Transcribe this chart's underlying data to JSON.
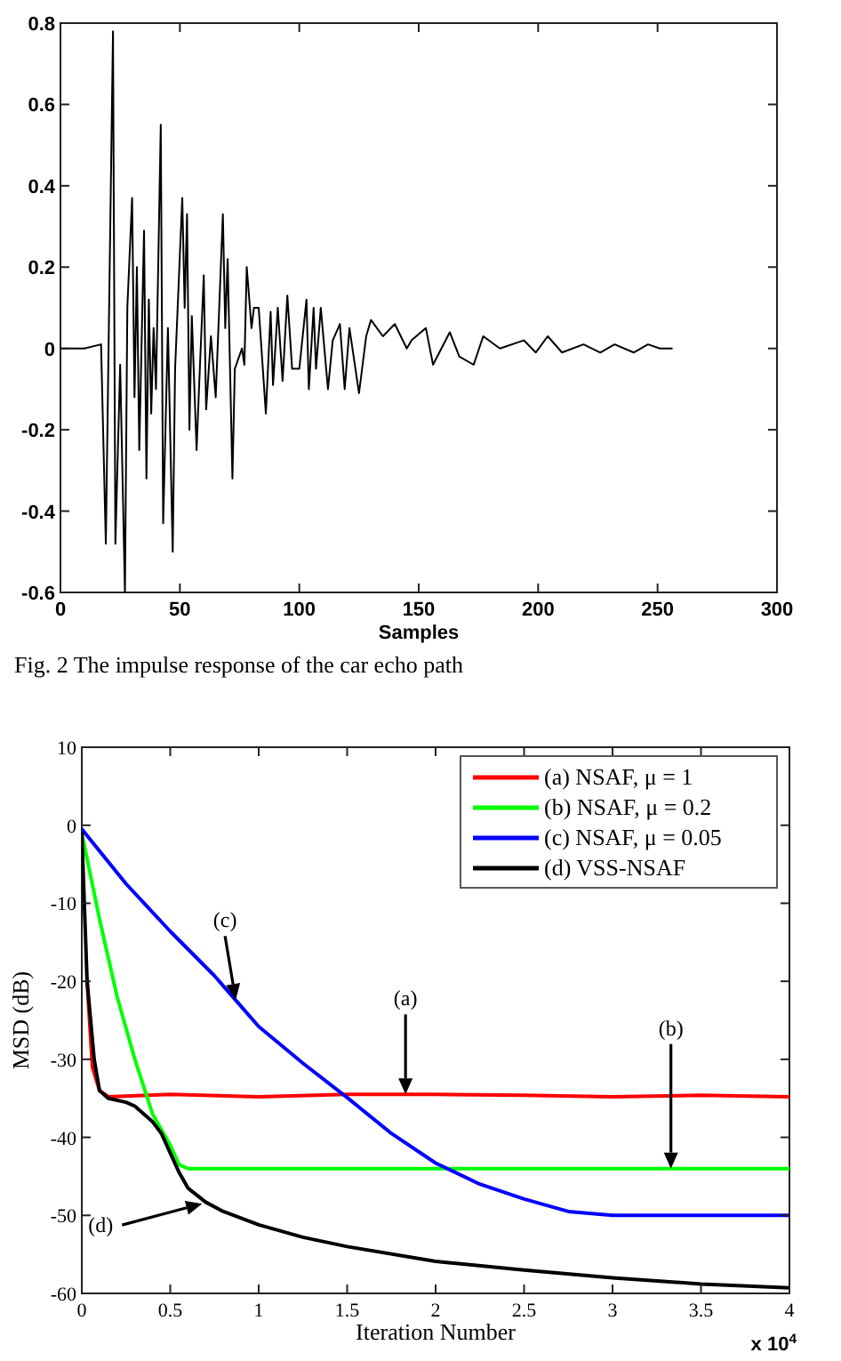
{
  "chart_data": [
    {
      "type": "line",
      "xlabel": "Samples",
      "xlim": [
        0,
        300
      ],
      "xticks": [
        0,
        50,
        100,
        150,
        200,
        250,
        300
      ],
      "ylim": [
        -0.6,
        0.8
      ],
      "yticks": [
        -0.6,
        -0.4,
        -0.2,
        0,
        0.2,
        0.4,
        0.6,
        0.8
      ],
      "grid": false,
      "legend": false,
      "annotations": [
        "Fig. 2 The impulse response of the car echo path"
      ],
      "series": [
        {
          "color": "#000000",
          "x": [
            0,
            10,
            17,
            19,
            22,
            23,
            25,
            27,
            28,
            30,
            31,
            32,
            33,
            35,
            36,
            37,
            38,
            39,
            40,
            42,
            43,
            45,
            47,
            48,
            51,
            52,
            53,
            54,
            55,
            57,
            58,
            60,
            61,
            63,
            65,
            68,
            69,
            70,
            72,
            73,
            76,
            77,
            78,
            80,
            81,
            83,
            86,
            88,
            89,
            91,
            93,
            95,
            97,
            100,
            103,
            104,
            106,
            107,
            109,
            112,
            114,
            117,
            119,
            121,
            125,
            128,
            130,
            135,
            140,
            145,
            147,
            153,
            156,
            163,
            167,
            173,
            177,
            184,
            194,
            199,
            204,
            210,
            219,
            226,
            232,
            240,
            246,
            251,
            256
          ],
          "values": [
            0,
            0,
            0.01,
            -0.48,
            0.78,
            -0.48,
            -0.04,
            -0.6,
            0.1,
            0.37,
            -0.12,
            0.2,
            -0.25,
            0.29,
            -0.32,
            0.12,
            -0.16,
            0.05,
            -0.1,
            0.55,
            -0.43,
            0.05,
            -0.5,
            -0.05,
            0.37,
            0.1,
            0.33,
            -0.2,
            0.08,
            -0.25,
            -0.1,
            0.18,
            -0.15,
            0.03,
            -0.12,
            0.33,
            0.05,
            0.22,
            -0.32,
            -0.05,
            0,
            -0.04,
            0.2,
            0.05,
            0.1,
            0.1,
            -0.16,
            0.09,
            -0.09,
            0.1,
            -0.08,
            0.13,
            -0.05,
            -0.05,
            0.12,
            -0.1,
            0.1,
            -0.05,
            0.1,
            -0.1,
            0.02,
            0.06,
            -0.1,
            0.05,
            -0.11,
            0.03,
            0.07,
            0.03,
            0.06,
            0,
            0.02,
            0.05,
            -0.04,
            0.04,
            -0.02,
            -0.04,
            0.03,
            0,
            0.02,
            -0.01,
            0.03,
            -0.01,
            0.01,
            -0.01,
            0.01,
            -0.01,
            0.01,
            0,
            0
          ]
        }
      ]
    },
    {
      "type": "line",
      "xlabel": "Iteration Number",
      "ylabel": "MSD (dB)",
      "xlim": [
        0,
        4
      ],
      "xticks": [
        0,
        0.5,
        1,
        1.5,
        2,
        2.5,
        3,
        3.5,
        4
      ],
      "ylim": [
        -60,
        10
      ],
      "yticks": [
        -60,
        -50,
        -40,
        -30,
        -20,
        -10,
        0,
        10
      ],
      "grid": false,
      "legend": "top right",
      "annotations": [
        "x 10$^{4}$",
        {
          "text": "(a)",
          "x": 1.83,
          "y": -34.5
        },
        {
          "text": "(b)",
          "x": 3.33,
          "y": -44
        },
        {
          "text": "(c)",
          "x": 0.87,
          "y": -22.4
        },
        {
          "text": "(d)",
          "x": 0.68,
          "y": -48.5
        }
      ],
      "series": [
        {
          "name": "(a) NSAF, μ = 1",
          "color": "#ff0000",
          "x": [
            0.03,
            0.06,
            0.1,
            0.15,
            0.5,
            1,
            1.5,
            2,
            2.5,
            3,
            3.5,
            4
          ],
          "values": [
            -20,
            -31,
            -34,
            -34.8,
            -34.5,
            -34.8,
            -34.5,
            -34.5,
            -34.6,
            -34.8,
            -34.6,
            -34.8
          ]
        },
        {
          "name": "(b) NSAF, μ = 0.2",
          "color": "#00ff00",
          "x": [
            0,
            0.1,
            0.2,
            0.3,
            0.4,
            0.5,
            0.55,
            0.6,
            1,
            1.5,
            2,
            2.5,
            3,
            3.5,
            4
          ],
          "values": [
            -1,
            -12,
            -22,
            -30,
            -37,
            -41,
            -43.5,
            -44,
            -44,
            -44,
            -44,
            -44,
            -44,
            -44,
            -44
          ]
        },
        {
          "name": "(c) NSAF, μ = 0.05",
          "color": "#0000ff",
          "x": [
            0,
            0.25,
            0.5,
            0.75,
            1,
            1.25,
            1.5,
            1.75,
            2,
            2.25,
            2.5,
            2.75,
            3,
            3.5,
            4
          ],
          "values": [
            -0.5,
            -7.5,
            -13.6,
            -19.3,
            -25.8,
            -30.5,
            -34.9,
            -39.5,
            -43.3,
            -46,
            -47.9,
            -49.5,
            -50,
            -50,
            -50
          ]
        },
        {
          "name": "(d) VSS-NSAF",
          "color": "#000000",
          "x": [
            0,
            0.03,
            0.07,
            0.1,
            0.15,
            0.25,
            0.3,
            0.4,
            0.45,
            0.5,
            0.55,
            0.6,
            0.7,
            0.8,
            1,
            1.25,
            1.5,
            2,
            2.5,
            3,
            3.5,
            4
          ],
          "values": [
            -1,
            -20,
            -30,
            -34,
            -35,
            -35.5,
            -36,
            -38,
            -39.5,
            -42,
            -44.5,
            -46.5,
            -48.3,
            -49.5,
            -51.2,
            -52.8,
            -54,
            -55.9,
            -57,
            -58,
            -58.8,
            -59.3
          ]
        }
      ]
    }
  ]
}
